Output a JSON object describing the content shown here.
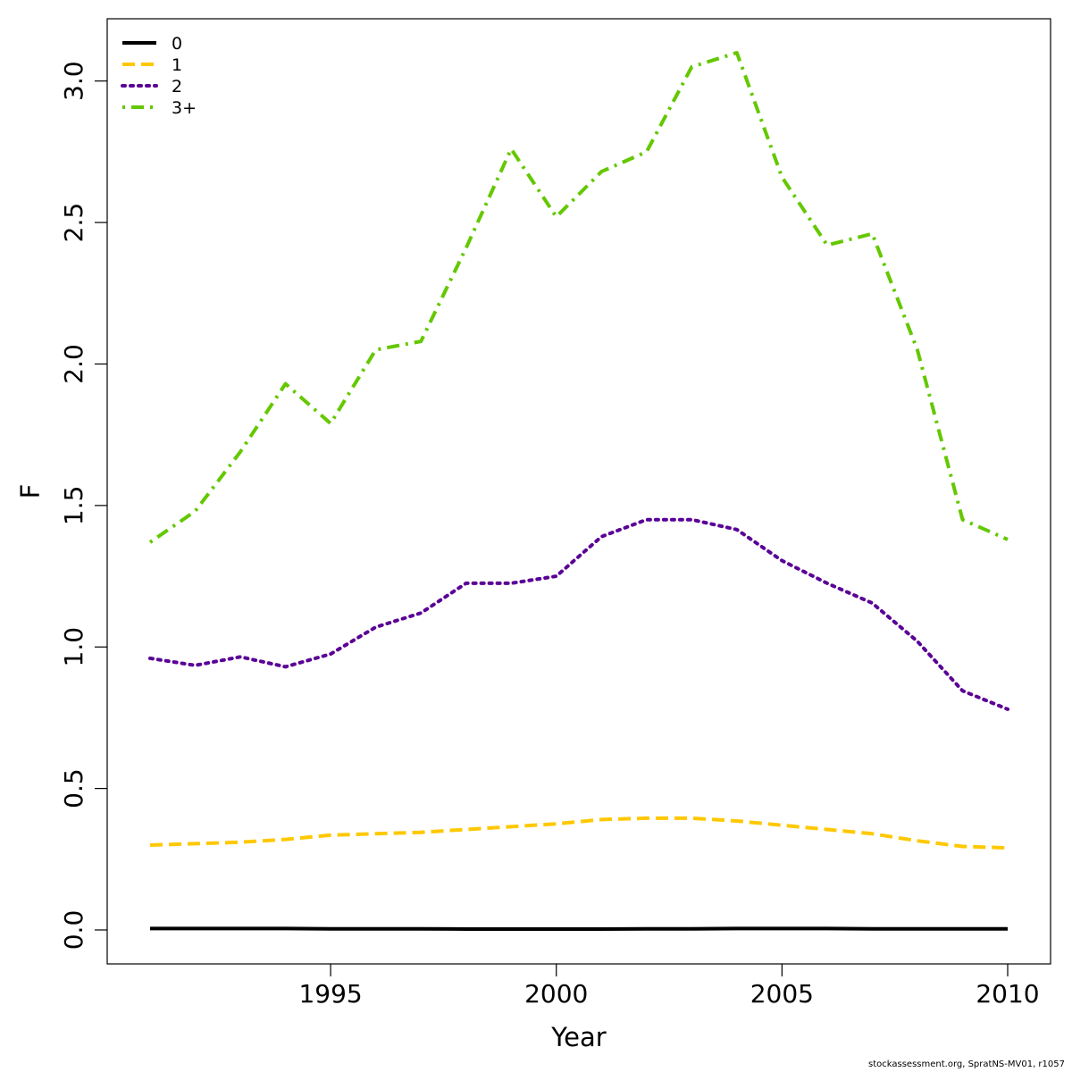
{
  "chart_data": {
    "type": "line",
    "title": "",
    "xlabel": "Year",
    "ylabel": "F",
    "xlim": [
      1990.05,
      2010.95
    ],
    "ylim": [
      -0.12,
      3.22
    ],
    "xticks": [
      1995,
      2000,
      2005,
      2010
    ],
    "yticks": [
      "0.0",
      "0.5",
      "1.0",
      "1.5",
      "2.0",
      "2.5",
      "3.0"
    ],
    "grid": false,
    "legend_position": "top-left",
    "x": [
      1991,
      1992,
      1993,
      1994,
      1995,
      1996,
      1997,
      1998,
      1999,
      2000,
      2001,
      2002,
      2003,
      2004,
      2005,
      2006,
      2007,
      2008,
      2009,
      2010
    ],
    "series": [
      {
        "name": "0",
        "color": "#000000",
        "dash": "solid",
        "values": [
          0.005,
          0.005,
          0.005,
          0.005,
          0.004,
          0.004,
          0.004,
          0.003,
          0.003,
          0.003,
          0.003,
          0.004,
          0.004,
          0.005,
          0.005,
          0.005,
          0.004,
          0.004,
          0.004,
          0.004
        ]
      },
      {
        "name": "1",
        "color": "#FFC800",
        "dash": "dashed",
        "values": [
          0.3,
          0.305,
          0.31,
          0.32,
          0.335,
          0.34,
          0.345,
          0.355,
          0.365,
          0.375,
          0.39,
          0.395,
          0.395,
          0.385,
          0.37,
          0.355,
          0.34,
          0.315,
          0.295,
          0.29
        ]
      },
      {
        "name": "2",
        "color": "#5A0096",
        "dash": "dotted",
        "values": [
          0.96,
          0.935,
          0.965,
          0.93,
          0.975,
          1.07,
          1.12,
          1.225,
          1.225,
          1.25,
          1.39,
          1.45,
          1.45,
          1.415,
          1.305,
          1.225,
          1.155,
          1.02,
          0.845,
          0.78
        ]
      },
      {
        "name": "3+",
        "color": "#64C800",
        "dash": "dashdot",
        "values": [
          1.37,
          1.48,
          1.69,
          1.93,
          1.79,
          2.05,
          2.08,
          2.41,
          2.76,
          2.52,
          2.68,
          2.75,
          3.05,
          3.1,
          2.66,
          2.42,
          2.46,
          2.05,
          1.45,
          1.38
        ]
      }
    ]
  },
  "source_note": "stockassessment.org, SpratNS-MV01, r1057"
}
